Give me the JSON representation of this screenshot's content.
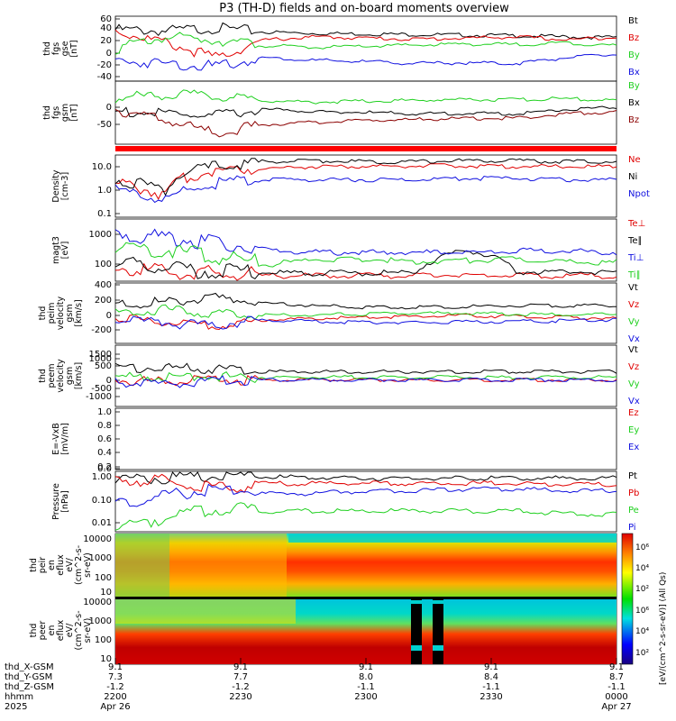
{
  "title": "P3 (TH-D) fields and on-board moments overview",
  "colors": {
    "black": "#000000",
    "red": "#e00000",
    "green": "#20d020",
    "blue": "#1010e0",
    "dark_red": "#8b0000",
    "cyan": "#00c8c8"
  },
  "panels": [
    {
      "id": "fgs-gse",
      "ylabel": [
        "thd",
        "fgs",
        "gse",
        "[nT]"
      ],
      "ticks": [
        "60",
        "40",
        "20",
        "0",
        "-20",
        "-40"
      ],
      "legend": [
        {
          "text": "Bt",
          "color": "black"
        },
        {
          "text": "Bz",
          "color": "red"
        },
        {
          "text": "By",
          "color": "green"
        },
        {
          "text": "Bx",
          "color": "blue"
        }
      ]
    },
    {
      "id": "fgs-gsm",
      "ylabel": [
        "thd",
        "fgs",
        "gsm",
        "[nT]"
      ],
      "ticks": [
        "0",
        "-50"
      ],
      "legend": [
        {
          "text": "By",
          "color": "green"
        },
        {
          "text": "Bx",
          "color": "black"
        },
        {
          "text": "Bz",
          "color": "dark_red"
        }
      ]
    },
    {
      "id": "density",
      "ylabel": [
        "Density",
        "[cm-3]"
      ],
      "ticks": [
        "10.0",
        "1.0",
        "0.1"
      ],
      "legend": [
        {
          "text": "Ne",
          "color": "red"
        },
        {
          "text": "Ni",
          "color": "black"
        },
        {
          "text": "Npot",
          "color": "blue"
        }
      ]
    },
    {
      "id": "temperature",
      "ylabel": [
        "magt3",
        "[eV]"
      ],
      "ticks": [
        "1000",
        "100"
      ],
      "legend": [
        {
          "text": "Te⊥",
          "color": "red"
        },
        {
          "text": "Te∥",
          "color": "black"
        },
        {
          "text": "Ti⊥",
          "color": "blue"
        },
        {
          "text": "Ti∥",
          "color": "green"
        }
      ]
    },
    {
      "id": "peim-velocity",
      "ylabel": [
        "thd",
        "peim",
        "velocity",
        "gsm",
        "[km/s]"
      ],
      "ticks": [
        "400",
        "200",
        "0",
        "-200"
      ],
      "legend": [
        {
          "text": "Vt",
          "color": "black"
        },
        {
          "text": "Vz",
          "color": "red"
        },
        {
          "text": "Vy",
          "color": "green"
        },
        {
          "text": "Vx",
          "color": "blue"
        }
      ]
    },
    {
      "id": "peem-velocity",
      "ylabel": [
        "thd",
        "peem",
        "velocity",
        "gsm",
        "[km/s]"
      ],
      "ticks": [
        "1500",
        "1000",
        "500",
        "0",
        "-500",
        "-1000"
      ],
      "legend": [
        {
          "text": "Vt",
          "color": "black"
        },
        {
          "text": "Vz",
          "color": "red"
        },
        {
          "text": "Vy",
          "color": "green"
        },
        {
          "text": "Vx",
          "color": "blue"
        }
      ]
    },
    {
      "id": "efield",
      "ylabel": [
        "E=-VxB",
        "[mV/m]"
      ],
      "ticks": [
        "1.0",
        "0.8",
        "0.6",
        "0.4",
        "0.2",
        "0.0"
      ],
      "legend": [
        {
          "text": "Ez",
          "color": "red"
        },
        {
          "text": "Ey",
          "color": "green"
        },
        {
          "text": "Ex",
          "color": "blue"
        }
      ]
    },
    {
      "id": "pressure",
      "ylabel": [
        "Pressure",
        "[nPa]"
      ],
      "ticks": [
        "1.00",
        "0.10",
        "0.01"
      ],
      "legend": [
        {
          "text": "Pt",
          "color": "black"
        },
        {
          "text": "Pb",
          "color": "red"
        },
        {
          "text": "Pe",
          "color": "green"
        },
        {
          "text": "Pi",
          "color": "blue"
        }
      ]
    },
    {
      "id": "peir-spec",
      "ylabel": [
        "thd",
        "peir",
        "en",
        "eflux",
        "eV/",
        "(cm^2-s-",
        "sr-eV)"
      ],
      "ticks": [
        "10000",
        "1000",
        "100",
        "10"
      ],
      "legend": []
    },
    {
      "id": "peer-spec",
      "ylabel": [
        "thd",
        "peer",
        "en",
        "eflux",
        "eV/",
        "(cm^2-s-",
        "sr-eV)"
      ],
      "ticks": [
        "10000",
        "1000",
        "100",
        "10"
      ],
      "legend": []
    }
  ],
  "colorbar": {
    "label": "[eV/(cm^2-s-sr-eV)] (All Qs)",
    "ticks": [
      "10⁶",
      "10⁴",
      "10²"
    ]
  },
  "xaxis": {
    "row_labels": [
      "thd_X-GSM",
      "thd_Y-GSM",
      "thd_Z-GSM",
      "hhmm",
      "2025"
    ],
    "ticks": [
      {
        "values": [
          "9.1",
          "7.3",
          "-1.2",
          "2200",
          "Apr 26"
        ]
      },
      {
        "values": [
          "9.1",
          "7.7",
          "-1.2",
          "2230",
          ""
        ]
      },
      {
        "values": [
          "9.1",
          "8.0",
          "-1.1",
          "2300",
          ""
        ]
      },
      {
        "values": [
          "9.1",
          "8.4",
          "-1.1",
          "2330",
          ""
        ]
      },
      {
        "values": [
          "9.1",
          "8.7",
          "-1.1",
          "0000",
          "Apr 27"
        ]
      }
    ]
  },
  "chart_data": {
    "type": "line",
    "title": "P3 (TH-D) fields and on-board moments overview",
    "x_axis": {
      "ticks": [
        "2200",
        "2230",
        "2300",
        "2330",
        "0000"
      ],
      "dates": [
        "Apr 26",
        "Apr 27"
      ],
      "year": "2025"
    },
    "series": [
      {
        "panel": "fgs-gse",
        "name": "Bt",
        "values": [
          42,
          40,
          45,
          38,
          36,
          35,
          34,
          33,
          32,
          30,
          29
        ]
      },
      {
        "panel": "fgs-gse",
        "name": "Bz",
        "values": [
          40,
          20,
          -5,
          25,
          30,
          28,
          26,
          28,
          30,
          25,
          30
        ]
      },
      {
        "panel": "fgs-gse",
        "name": "By",
        "values": [
          10,
          30,
          25,
          15,
          12,
          14,
          16,
          18,
          17,
          20,
          15
        ]
      },
      {
        "panel": "fgs-gse",
        "name": "Bx",
        "values": [
          -10,
          -15,
          -20,
          -5,
          -10,
          -12,
          -15,
          -14,
          -15,
          -5,
          0
        ]
      },
      {
        "panel": "fgs-gsm",
        "name": "By",
        "values": [
          20,
          30,
          25,
          15,
          12,
          14,
          16,
          18,
          17,
          20,
          15
        ]
      },
      {
        "panel": "fgs-gsm",
        "name": "Bx",
        "values": [
          -10,
          -15,
          -20,
          -5,
          -10,
          -12,
          -15,
          -14,
          -15,
          -5,
          0
        ]
      },
      {
        "panel": "fgs-gsm",
        "name": "Bz",
        "values": [
          -5,
          -30,
          -60,
          -40,
          -35,
          -30,
          -28,
          -26,
          -25,
          -15,
          -10
        ]
      },
      {
        "panel": "density",
        "name": "Ne",
        "values": [
          2,
          0.5,
          8,
          10,
          12,
          12,
          13,
          13,
          12,
          12,
          12
        ]
      },
      {
        "panel": "density",
        "name": "Ni",
        "values": [
          3,
          1,
          12,
          20,
          22,
          20,
          20,
          22,
          22,
          20,
          20
        ]
      },
      {
        "panel": "density",
        "name": "Npot",
        "values": [
          1,
          0.3,
          2,
          3,
          3,
          3,
          3,
          3.5,
          3.5,
          3,
          3
        ]
      },
      {
        "panel": "temperature",
        "name": "Te⊥",
        "values": [
          80,
          60,
          50,
          45,
          45,
          45,
          45,
          50,
          45,
          45,
          45
        ]
      },
      {
        "panel": "temperature",
        "name": "Te∥",
        "values": [
          100,
          80,
          60,
          55,
          55,
          55,
          55,
          300,
          60,
          60,
          60
        ]
      },
      {
        "panel": "temperature",
        "name": "Ti⊥",
        "values": [
          1000,
          800,
          500,
          300,
          250,
          250,
          250,
          250,
          280,
          280,
          250
        ]
      },
      {
        "panel": "temperature",
        "name": "Ti∥",
        "values": [
          400,
          300,
          200,
          100,
          150,
          150,
          130,
          140,
          150,
          120,
          120
        ]
      },
      {
        "panel": "peim-velocity",
        "name": "Vt",
        "values": [
          150,
          200,
          250,
          180,
          150,
          130,
          130,
          140,
          150,
          150,
          150
        ]
      },
      {
        "panel": "peim-velocity",
        "name": "Vz",
        "values": [
          20,
          -50,
          -100,
          -20,
          0,
          10,
          20,
          30,
          20,
          10,
          0
        ]
      },
      {
        "panel": "peim-velocity",
        "name": "Vy",
        "values": [
          50,
          100,
          50,
          40,
          40,
          50,
          60,
          60,
          50,
          40,
          50
        ]
      },
      {
        "panel": "peim-velocity",
        "name": "Vx",
        "values": [
          -30,
          -60,
          -80,
          -20,
          -40,
          -50,
          -50,
          -40,
          -40,
          -30,
          -20
        ]
      },
      {
        "panel": "peem-velocity",
        "name": "Vt",
        "values": [
          500,
          500,
          400,
          300,
          300,
          300,
          300,
          300,
          300,
          300,
          300
        ]
      },
      {
        "panel": "peem-velocity",
        "name": "Vz",
        "values": [
          -100,
          -200,
          -100,
          -100,
          -100,
          -100,
          -100,
          -100,
          -100,
          -100,
          -100
        ]
      },
      {
        "panel": "peem-velocity",
        "name": "Vy",
        "values": [
          50,
          80,
          50,
          30,
          30,
          30,
          30,
          30,
          30,
          30,
          30
        ]
      },
      {
        "panel": "peem-velocity",
        "name": "Vx",
        "values": [
          -200,
          -300,
          -150,
          -100,
          -100,
          -100,
          -100,
          -100,
          -100,
          -100,
          -100
        ]
      },
      {
        "panel": "pressure",
        "name": "Pt",
        "values": [
          0.8,
          0.9,
          1.0,
          0.9,
          0.85,
          0.8,
          0.8,
          0.8,
          0.8,
          0.8,
          0.8
        ]
      },
      {
        "panel": "pressure",
        "name": "Pb",
        "values": [
          0.7,
          0.6,
          0.3,
          0.5,
          0.5,
          0.5,
          0.5,
          0.5,
          0.5,
          0.45,
          0.45
        ]
      },
      {
        "panel": "pressure",
        "name": "Pe",
        "values": [
          0.01,
          0.02,
          0.05,
          0.04,
          0.04,
          0.04,
          0.04,
          0.04,
          0.04,
          0.03,
          0.03
        ]
      },
      {
        "panel": "pressure",
        "name": "Pi",
        "values": [
          0.08,
          0.15,
          0.3,
          0.2,
          0.2,
          0.25,
          0.25,
          0.3,
          0.3,
          0.25,
          0.25
        ]
      }
    ]
  }
}
